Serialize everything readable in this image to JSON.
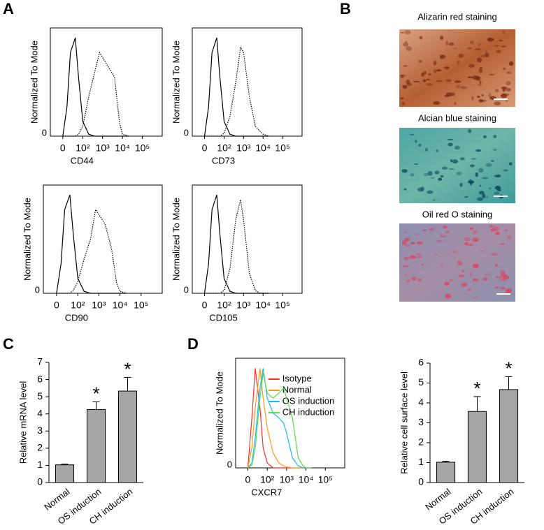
{
  "panel_labels": [
    "A",
    "B",
    "C",
    "D"
  ],
  "stain_images": [
    {
      "caption": "Alizarin red staining"
    },
    {
      "caption": "Alcian blue staining"
    },
    {
      "caption": "Oil red O staining"
    }
  ],
  "chart_data": [
    {
      "type": "line",
      "xscale": "biexp",
      "y_label": "Normalized To Mode",
      "x_label": "CD44",
      "x": [
        0,
        10,
        20,
        40,
        60,
        100,
        200,
        400,
        700,
        1000,
        2000,
        4000,
        7000,
        10000,
        20000
      ],
      "series": [
        {
          "color": "#000000",
          "linestyle": "solid",
          "values": [
            0,
            30,
            85,
            100,
            60,
            15,
            2,
            0,
            0,
            0,
            0,
            0,
            0,
            0,
            0
          ]
        },
        {
          "color": "#000000",
          "linestyle": "dotted",
          "values": [
            0,
            0,
            0,
            0,
            2,
            10,
            40,
            65,
            85,
            80,
            70,
            60,
            15,
            2,
            0
          ]
        }
      ],
      "xlim": [
        -40,
        1000000
      ],
      "xticks": [
        0,
        {
          "value": 100,
          "label": "10²"
        },
        {
          "value": 1000,
          "label": "10³"
        },
        {
          "value": 10000,
          "label": "10⁴"
        },
        {
          "value": 100000,
          "label": "10⁵"
        }
      ],
      "ylim": [
        0,
        110
      ],
      "yticks": [
        0
      ]
    },
    {
      "type": "line",
      "xscale": "biexp",
      "y_label": "Normalized To Mode",
      "x_label": "CD73",
      "x": [
        0,
        10,
        20,
        40,
        60,
        100,
        200,
        400,
        700,
        1000,
        2000,
        4000,
        7000,
        10000,
        20000
      ],
      "series": [
        {
          "color": "#000000",
          "linestyle": "solid",
          "values": [
            0,
            30,
            85,
            100,
            60,
            15,
            2,
            0,
            0,
            0,
            0,
            0,
            0,
            0,
            0
          ]
        },
        {
          "color": "#000000",
          "linestyle": "dotted",
          "values": [
            0,
            0,
            0,
            0,
            0,
            3,
            20,
            55,
            90,
            85,
            40,
            10,
            5,
            2,
            0
          ]
        }
      ],
      "xlim": [
        -40,
        1000000
      ],
      "xticks": [
        0,
        {
          "value": 100,
          "label": "10²"
        },
        {
          "value": 1000,
          "label": "10³"
        },
        {
          "value": 10000,
          "label": "10⁴"
        },
        {
          "value": 100000,
          "label": "10⁵"
        }
      ],
      "ylim": [
        0,
        110
      ],
      "yticks": [
        0
      ]
    },
    {
      "type": "line",
      "xscale": "biexp",
      "y_label": "Normalized To Mode",
      "x_label": "CD90",
      "x": [
        0,
        10,
        20,
        40,
        60,
        100,
        200,
        400,
        700,
        1000,
        2000,
        4000,
        7000,
        10000,
        20000
      ],
      "series": [
        {
          "color": "#000000",
          "linestyle": "solid",
          "values": [
            0,
            30,
            85,
            100,
            60,
            15,
            2,
            0,
            0,
            0,
            0,
            0,
            0,
            0,
            0
          ]
        },
        {
          "color": "#000000",
          "linestyle": "dotted",
          "values": [
            0,
            0,
            0,
            0,
            3,
            12,
            35,
            55,
            85,
            80,
            70,
            45,
            10,
            2,
            0
          ]
        }
      ],
      "xlim": [
        -40,
        1000000
      ],
      "xticks": [
        0,
        {
          "value": 100,
          "label": "10²"
        },
        {
          "value": 1000,
          "label": "10³"
        },
        {
          "value": 10000,
          "label": "10⁴"
        },
        {
          "value": 100000,
          "label": "10⁵"
        }
      ],
      "ylim": [
        0,
        110
      ],
      "yticks": [
        0
      ]
    },
    {
      "type": "line",
      "xscale": "biexp",
      "y_label": "Normalized To Mode",
      "x_label": "CD105",
      "x": [
        0,
        10,
        20,
        40,
        60,
        100,
        200,
        400,
        700,
        1000,
        2000,
        4000,
        7000,
        10000,
        20000
      ],
      "series": [
        {
          "color": "#000000",
          "linestyle": "solid",
          "values": [
            0,
            30,
            85,
            100,
            60,
            15,
            2,
            0,
            0,
            0,
            0,
            0,
            0,
            0,
            0
          ]
        },
        {
          "color": "#000000",
          "linestyle": "dotted",
          "values": [
            0,
            0,
            0,
            0,
            0,
            3,
            25,
            75,
            95,
            75,
            20,
            3,
            0,
            0,
            0
          ]
        }
      ],
      "xlim": [
        -40,
        1000000
      ],
      "xticks": [
        0,
        {
          "value": 100,
          "label": "10²"
        },
        {
          "value": 1000,
          "label": "10³"
        },
        {
          "value": 10000,
          "label": "10⁴"
        },
        {
          "value": 100000,
          "label": "10⁵"
        }
      ],
      "ylim": [
        0,
        110
      ],
      "yticks": [
        0
      ]
    },
    {
      "type": "bar",
      "y_label": "Relative mRNA level",
      "categories": [
        "Normal",
        "OS induction",
        "CH induction"
      ],
      "values": [
        1.03,
        4.25,
        5.33
      ],
      "errors": [
        0.05,
        0.45,
        0.8
      ],
      "annotations": [
        null,
        "*",
        "*"
      ],
      "color": "#a6a6a6",
      "ylim": [
        0,
        7
      ],
      "yticks": [
        0,
        1,
        2,
        3,
        4,
        5,
        6,
        7
      ]
    },
    {
      "type": "line",
      "xscale": "biexp",
      "y_label": "Normalized To Mode",
      "x_label": "CXCR7",
      "legend": "upper right",
      "x": [
        0,
        10,
        20,
        40,
        60,
        100,
        200,
        400,
        700,
        1000,
        2000,
        4000,
        7000,
        10000,
        20000
      ],
      "series": [
        {
          "name": "Isotype",
          "color": "#ff2a2a",
          "linestyle": "solid",
          "values": [
            0,
            50,
            100,
            60,
            20,
            5,
            0,
            0,
            0,
            0,
            0,
            0,
            0,
            0,
            0
          ]
        },
        {
          "name": "Normal",
          "color": "#ff9a1a",
          "linestyle": "solid",
          "values": [
            0,
            20,
            60,
            100,
            70,
            40,
            15,
            5,
            2,
            1,
            0,
            0,
            0,
            0,
            0
          ]
        },
        {
          "name": "OS induction",
          "color": "#1ab8ee",
          "linestyle": "solid",
          "values": [
            0,
            5,
            30,
            80,
            100,
            70,
            55,
            50,
            45,
            35,
            10,
            2,
            0,
            0,
            0
          ]
        },
        {
          "name": "CH induction",
          "color": "#5ed84a",
          "linestyle": "solid",
          "values": [
            0,
            3,
            20,
            70,
            95,
            75,
            70,
            75,
            80,
            70,
            50,
            10,
            2,
            0,
            0
          ]
        }
      ],
      "xlim": [
        -40,
        1000000
      ],
      "xticks": [
        0,
        {
          "value": 100,
          "label": "10²"
        },
        {
          "value": 1000,
          "label": "10³"
        },
        {
          "value": 10000,
          "label": "10⁴"
        },
        {
          "value": 100000,
          "label": "10⁵"
        }
      ],
      "ylim": [
        0,
        110
      ],
      "yticks": [
        0
      ]
    },
    {
      "type": "bar",
      "y_label": "Relative cell surface level",
      "categories": [
        "Normal",
        "OS induction",
        "CH induction"
      ],
      "values": [
        1.02,
        3.57,
        4.67
      ],
      "errors": [
        0.05,
        0.75,
        0.65
      ],
      "annotations": [
        null,
        "*",
        "*"
      ],
      "color": "#a6a6a6",
      "ylim": [
        0,
        6
      ],
      "yticks": [
        0,
        1,
        2,
        3,
        4,
        5,
        6
      ]
    }
  ]
}
